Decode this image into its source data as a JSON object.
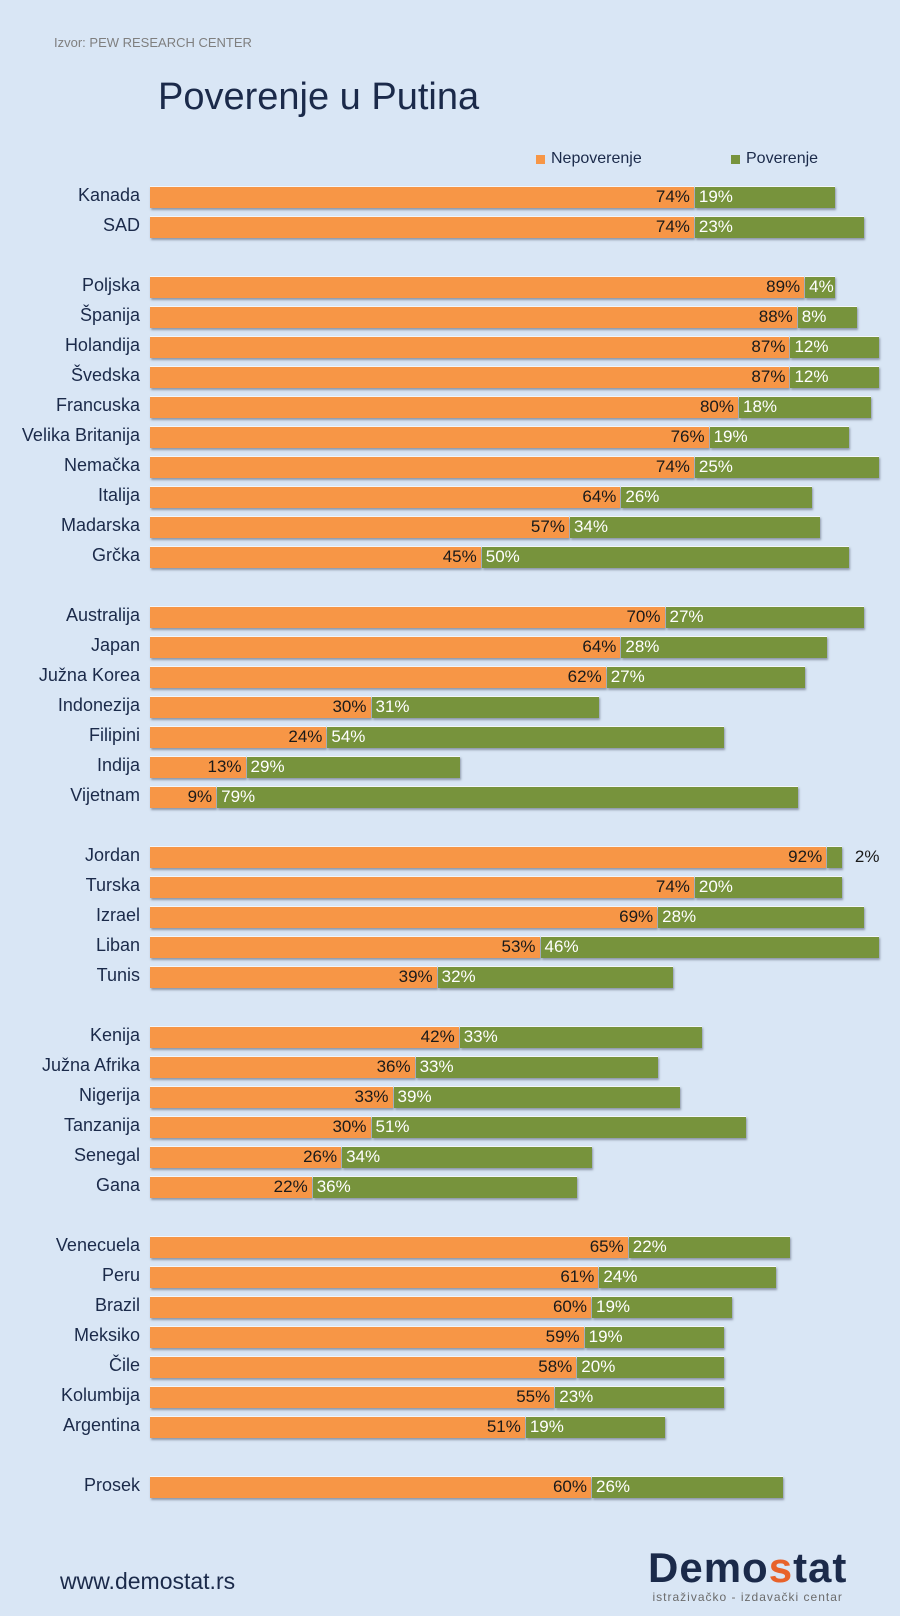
{
  "source": "Izvor: PEW RESEARCH CENTER",
  "footer": {
    "url": "www.demostat.rs",
    "logo_pre": "Demo",
    "logo_accent": "s",
    "logo_post": "tat",
    "logo_sub": "istraživačko - izdavački  centar"
  },
  "colors": {
    "background": "#d9e6f5",
    "nepoverenje": "#f79646",
    "poverenje": "#77933c",
    "title": "#1b2a4a",
    "logo_accent": "#e8622a"
  },
  "chart_data": {
    "type": "bar",
    "orientation": "horizontal-stacked",
    "title": "Poverenje u Putina",
    "xlabel": "",
    "ylabel": "",
    "legend": {
      "placement": "top-right",
      "entries": [
        "Nepoverenje",
        "Poverenje"
      ]
    },
    "unit": "%",
    "groups": [
      {
        "rows": [
          {
            "country": "Kanada",
            "nepoverenje": 74,
            "poverenje": 19
          },
          {
            "country": "SAD",
            "nepoverenje": 74,
            "poverenje": 23
          }
        ]
      },
      {
        "rows": [
          {
            "country": "Poljska",
            "nepoverenje": 89,
            "poverenje": 4
          },
          {
            "country": "Španija",
            "nepoverenje": 88,
            "poverenje": 8
          },
          {
            "country": "Holandija",
            "nepoverenje": 87,
            "poverenje": 12
          },
          {
            "country": "Švedska",
            "nepoverenje": 87,
            "poverenje": 12
          },
          {
            "country": "Francuska",
            "nepoverenje": 80,
            "poverenje": 18
          },
          {
            "country": "Velika Britanija",
            "nepoverenje": 76,
            "poverenje": 19
          },
          {
            "country": "Nemačka",
            "nepoverenje": 74,
            "poverenje": 25
          },
          {
            "country": "Italija",
            "nepoverenje": 64,
            "poverenje": 26
          },
          {
            "country": "Madarska",
            "nepoverenje": 57,
            "poverenje": 34
          },
          {
            "country": "Grčka",
            "nepoverenje": 45,
            "poverenje": 50
          }
        ]
      },
      {
        "rows": [
          {
            "country": "Australija",
            "nepoverenje": 70,
            "poverenje": 27
          },
          {
            "country": "Japan",
            "nepoverenje": 64,
            "poverenje": 28
          },
          {
            "country": "Južna Korea",
            "nepoverenje": 62,
            "poverenje": 27
          },
          {
            "country": "Indonezija",
            "nepoverenje": 30,
            "poverenje": 31
          },
          {
            "country": "Filipini",
            "nepoverenje": 24,
            "poverenje": 54
          },
          {
            "country": "Indija",
            "nepoverenje": 13,
            "poverenje": 29
          },
          {
            "country": "Vijetnam",
            "nepoverenje": 9,
            "poverenje": 79
          }
        ]
      },
      {
        "rows": [
          {
            "country": "Jordan",
            "nepoverenje": 92,
            "poverenje": 2
          },
          {
            "country": "Turska",
            "nepoverenje": 74,
            "poverenje": 20
          },
          {
            "country": "Izrael",
            "nepoverenje": 69,
            "poverenje": 28
          },
          {
            "country": "Liban",
            "nepoverenje": 53,
            "poverenje": 46
          },
          {
            "country": "Tunis",
            "nepoverenje": 39,
            "poverenje": 32
          }
        ]
      },
      {
        "rows": [
          {
            "country": "Kenija",
            "nepoverenje": 42,
            "poverenje": 33
          },
          {
            "country": "Južna Afrika",
            "nepoverenje": 36,
            "poverenje": 33
          },
          {
            "country": "Nigerija",
            "nepoverenje": 33,
            "poverenje": 39
          },
          {
            "country": "Tanzanija",
            "nepoverenje": 30,
            "poverenje": 51
          },
          {
            "country": "Senegal",
            "nepoverenje": 26,
            "poverenje": 34
          },
          {
            "country": "Gana",
            "nepoverenje": 22,
            "poverenje": 36
          }
        ]
      },
      {
        "rows": [
          {
            "country": "Venecuela",
            "nepoverenje": 65,
            "poverenje": 22
          },
          {
            "country": "Peru",
            "nepoverenje": 61,
            "poverenje": 24
          },
          {
            "country": "Brazil",
            "nepoverenje": 60,
            "poverenje": 19
          },
          {
            "country": "Meksiko",
            "nepoverenje": 59,
            "poverenje": 19
          },
          {
            "country": "Čile",
            "nepoverenje": 58,
            "poverenje": 20
          },
          {
            "country": "Kolumbija",
            "nepoverenje": 55,
            "poverenje": 23
          },
          {
            "country": "Argentina",
            "nepoverenje": 51,
            "poverenje": 19
          }
        ]
      },
      {
        "rows": [
          {
            "country": "Prosek",
            "nepoverenje": 60,
            "poverenje": 26
          }
        ]
      }
    ]
  }
}
